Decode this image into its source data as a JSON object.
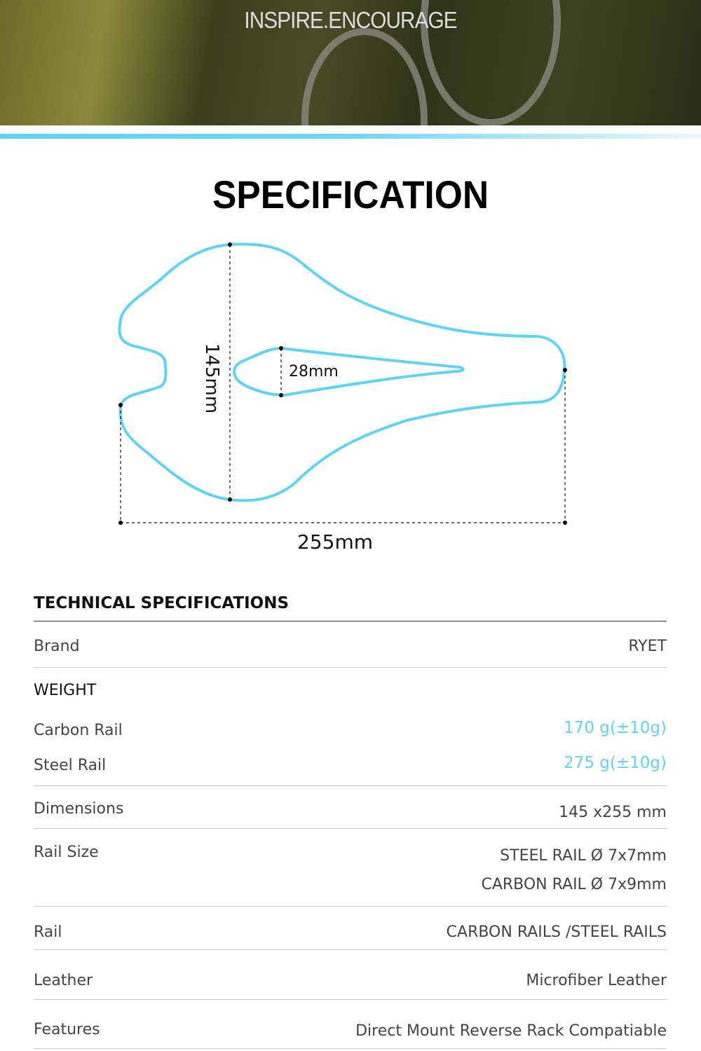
{
  "hero": {
    "title": "INSPIRE.ENCOURAGE"
  },
  "colors": {
    "accent": "#5fd3f6"
  },
  "heading": "SPECIFICATION",
  "diagram": {
    "width_label": "255mm",
    "length_label": "145mm",
    "cutout_label": "28mm"
  },
  "tech": {
    "title": "TECHNICAL SPECIFICATIONS",
    "brand": {
      "label": "Brand",
      "value": "RYET"
    },
    "weight": {
      "label": "WEIGHT",
      "carbon": {
        "label": "Carbon Rail",
        "value": "170 g(±10g)"
      },
      "steel": {
        "label": "Steel Rail",
        "value": "275 g(±10g)"
      }
    },
    "dimensions": {
      "label": "Dimensions",
      "value": "145 x255 mm"
    },
    "rail_size": {
      "label": "Rail Size",
      "values": [
        "STEEL RAIL Ø 7x7mm",
        "CARBON RAIL Ø 7x9mm"
      ]
    },
    "rail": {
      "label": "Rail",
      "value": "CARBON RAILS /STEEL RAILS"
    },
    "leather": {
      "label": "Leather",
      "value": "Microfiber Leather"
    },
    "features": {
      "label": "Features",
      "value": "Direct Mount Reverse Rack Compatiable"
    }
  }
}
